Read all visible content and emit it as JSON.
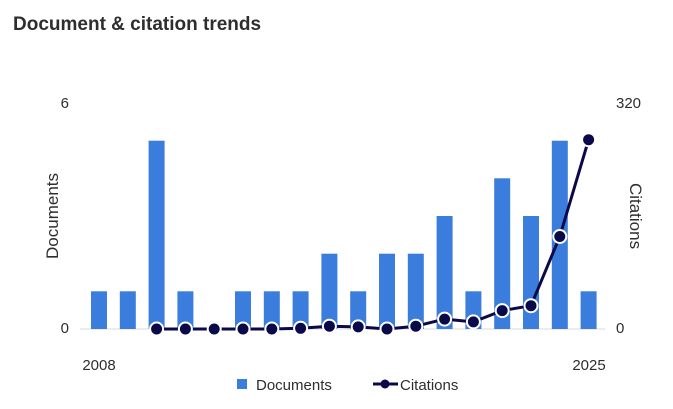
{
  "title": "Document & citation trends",
  "colors": {
    "documents": "#3b7ddd",
    "citations": "#0a0a4a",
    "axis": "#d9d9d9"
  },
  "chart_data": {
    "type": "bar",
    "title": "Document & citation trends",
    "x": [
      2008,
      2009,
      2010,
      2011,
      2012,
      2013,
      2014,
      2015,
      2016,
      2017,
      2018,
      2019,
      2020,
      2021,
      2022,
      2023,
      2024,
      2025
    ],
    "x_tick_labels": [
      "2008",
      "2025"
    ],
    "series": [
      {
        "name": "Documents",
        "type": "bar",
        "axis": "left",
        "values": [
          1,
          1,
          5,
          1,
          0,
          1,
          1,
          1,
          2,
          1,
          2,
          2,
          3,
          1,
          4,
          3,
          5,
          1
        ]
      },
      {
        "name": "Citations",
        "type": "line",
        "axis": "right",
        "values": [
          null,
          null,
          0,
          0,
          0,
          0,
          0,
          1,
          4,
          3,
          0,
          4,
          14,
          10,
          26,
          33,
          131,
          268
        ]
      }
    ],
    "ylabel": "Documents",
    "y2label": "Citations",
    "ylim": [
      0,
      6
    ],
    "y2lim": [
      0,
      320
    ],
    "y_tick_labels": [
      "0",
      "6"
    ],
    "y2_tick_labels": [
      "0",
      "320"
    ],
    "legend": "bottom",
    "grid": false
  }
}
